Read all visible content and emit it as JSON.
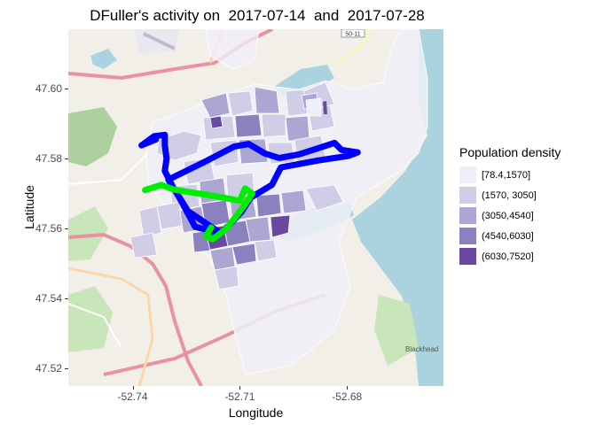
{
  "title": "DFuller's activity on  2017-07-14  and  2017-07-28",
  "axes": {
    "x_label": "Longitude",
    "y_label": "Latitude",
    "x_ticks": [
      {
        "value": -52.74,
        "label": "-52.74"
      },
      {
        "value": -52.71,
        "label": "-52.71"
      },
      {
        "value": -52.68,
        "label": "-52.68"
      }
    ],
    "y_ticks": [
      {
        "value": 47.6,
        "label": "47.60"
      },
      {
        "value": 47.58,
        "label": "47.58"
      },
      {
        "value": 47.56,
        "label": "47.56"
      },
      {
        "value": 47.54,
        "label": "47.54"
      },
      {
        "value": 47.52,
        "label": "47.52"
      }
    ],
    "xlim": [
      -52.758,
      -52.653
    ],
    "ylim": [
      47.515,
      47.617
    ]
  },
  "legend": {
    "title": "Population density",
    "placement": "right",
    "items": [
      {
        "label": "[78.4,1570]",
        "color": "#f0eef7"
      },
      {
        "label": "(1570, 3050]",
        "color": "#d0cde6"
      },
      {
        "label": "(3050,4540]",
        "color": "#aba6d2"
      },
      {
        "label": "(4540,6030]",
        "color": "#8b81be"
      },
      {
        "label": "(6030,7520]",
        "color": "#6a4a9f"
      }
    ]
  },
  "map_labels": {
    "route_shield": "50-11",
    "place_label": "Blackhead"
  },
  "chart_data": {
    "type": "map",
    "tracks": [
      {
        "date": "2017-07-14",
        "color": "#0000ff",
        "points": [
          [
            -52.7335,
            47.5855
          ],
          [
            -52.7375,
            47.5838
          ],
          [
            -52.734,
            47.5864
          ],
          [
            -52.731,
            47.5868
          ],
          [
            -52.731,
            47.584
          ],
          [
            -52.7305,
            47.58
          ],
          [
            -52.731,
            47.5765
          ],
          [
            -52.7285,
            47.5715
          ],
          [
            -52.7245,
            47.565
          ],
          [
            -52.718,
            47.5605
          ],
          [
            -52.7155,
            47.5588
          ],
          [
            -52.7225,
            47.5605
          ],
          [
            -52.727,
            47.569
          ],
          [
            -52.73,
            47.574
          ],
          [
            -52.72,
            47.579
          ],
          [
            -52.7115,
            47.5835
          ],
          [
            -52.7075,
            47.5842
          ],
          [
            -52.703,
            47.5815
          ],
          [
            -52.699,
            47.5802
          ],
          [
            -52.6935,
            47.5812
          ],
          [
            -52.688,
            47.583
          ],
          [
            -52.6835,
            47.5845
          ],
          [
            -52.6815,
            47.5825
          ],
          [
            -52.677,
            47.5818
          ],
          [
            -52.6795,
            47.5808
          ],
          [
            -52.688,
            47.5795
          ],
          [
            -52.6985,
            47.5775
          ],
          [
            -52.701,
            47.5725
          ],
          [
            -52.707,
            47.5688
          ],
          [
            -52.7095,
            47.5648
          ],
          [
            -52.713,
            47.561
          ],
          [
            -52.715,
            47.559
          ]
        ]
      },
      {
        "date": "2017-07-28",
        "color": "#00ee00",
        "points": [
          [
            -52.7365,
            47.571
          ],
          [
            -52.732,
            47.5725
          ],
          [
            -52.7285,
            47.5712
          ],
          [
            -52.7245,
            47.5705
          ],
          [
            -52.72,
            47.5698
          ],
          [
            -52.7155,
            47.569
          ],
          [
            -52.71,
            47.568
          ],
          [
            -52.7085,
            47.5715
          ],
          [
            -52.7065,
            47.57
          ],
          [
            -52.7085,
            47.567
          ],
          [
            -52.711,
            47.5635
          ],
          [
            -52.714,
            47.5598
          ],
          [
            -52.7175,
            47.557
          ],
          [
            -52.7195,
            47.5578
          ],
          [
            -52.718,
            47.5603
          ]
        ]
      }
    ],
    "density_classes": [
      {
        "range": "[78.4,1570]",
        "color": "#f0eef7"
      },
      {
        "range": "(1570, 3050]",
        "color": "#d0cde6"
      },
      {
        "range": "(3050,4540]",
        "color": "#aba6d2"
      },
      {
        "range": "(4540,6030]",
        "color": "#8b81be"
      },
      {
        "range": "(6030,7520]",
        "color": "#6a4a9f"
      }
    ]
  }
}
